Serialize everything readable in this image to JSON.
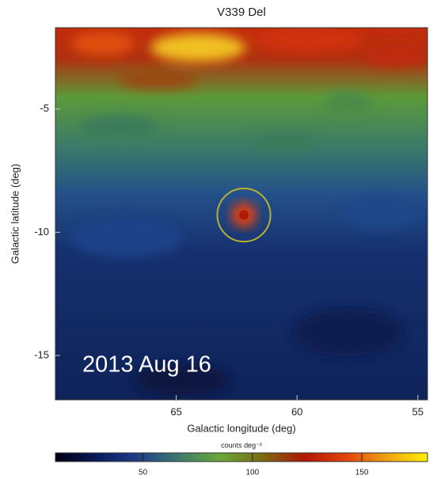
{
  "chart_data": {
    "type": "heatmap",
    "title": "V339 Del",
    "xlabel": "Galactic longitude (deg)",
    "ylabel": "Galactic latitude (deg)",
    "annotation": "2013 Aug 16",
    "colorbar_label": "counts deg⁻²",
    "xlim": [
      70,
      54.6
    ],
    "xticks": [
      65,
      60,
      55
    ],
    "ylim": [
      -16.8,
      -1.7
    ],
    "yticks": [
      -5,
      -10,
      -15
    ],
    "clim": [
      10,
      180
    ],
    "cticks": [
      50,
      100,
      150
    ],
    "colormap": [
      "#000010",
      "#0a1a5a",
      "#1f3f8a",
      "#3d7a6a",
      "#6aa83a",
      "#7a6a10",
      "#b01808",
      "#e0400a",
      "#f0a010",
      "#fff000"
    ],
    "marker": {
      "x": 62.2,
      "y": -9.3,
      "radius": 1.1,
      "color": "#b8b030"
    }
  }
}
